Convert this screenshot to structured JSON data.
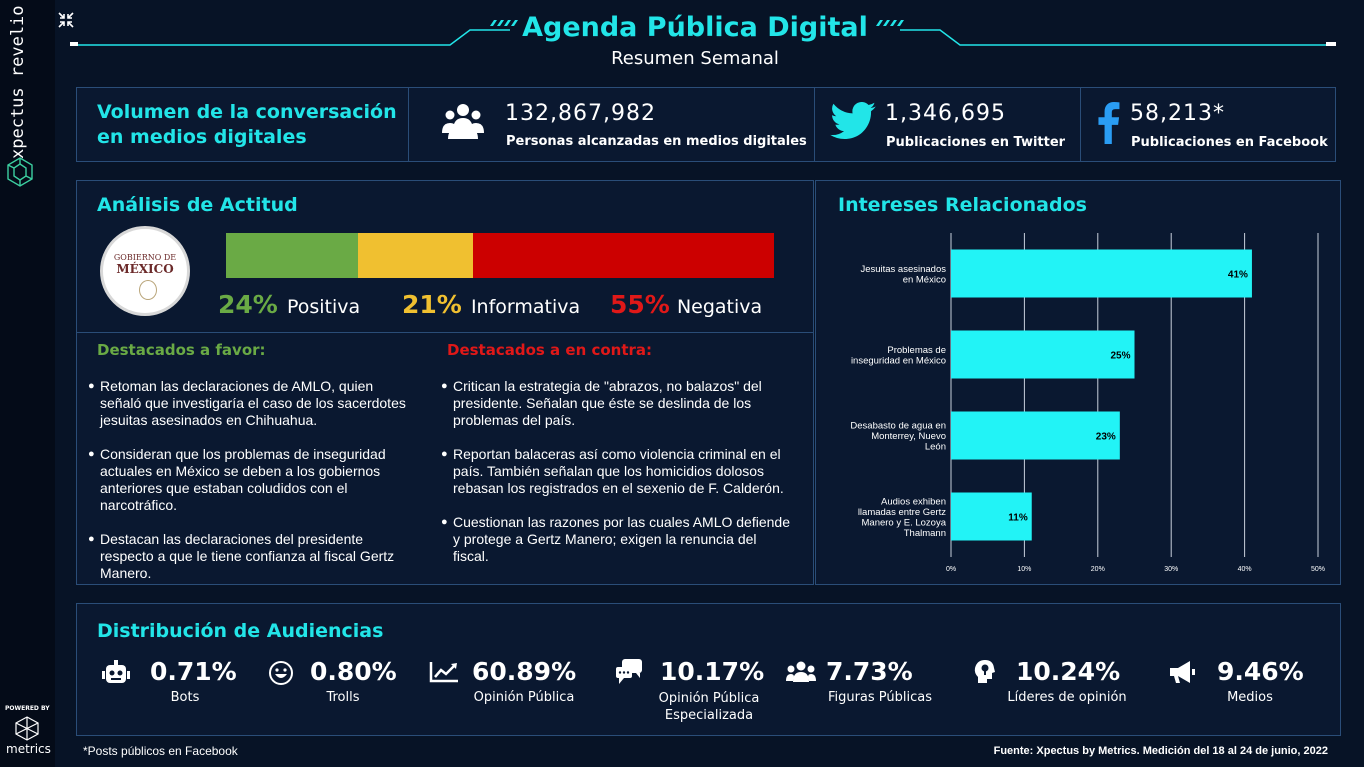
{
  "sidebar": {
    "brand": "xpectus revelio",
    "powered_by": "POWERED BY",
    "powered_name": "metrics"
  },
  "header": {
    "title": "Agenda Pública Digital",
    "subtitle": "Resumen Semanal"
  },
  "volume": {
    "title_line1": "Volumen de la conversación",
    "title_line2": "en medios digitales",
    "stats": [
      {
        "icon": "people-icon",
        "value": "132,867,982",
        "label": "Personas alcanzadas en medios digitales"
      },
      {
        "icon": "twitter-icon",
        "value": "1,346,695",
        "label": "Publicaciones en Twitter"
      },
      {
        "icon": "facebook-icon",
        "value": "58,213*",
        "label": "Publicaciones en Facebook"
      }
    ]
  },
  "attitude": {
    "title": "Análisis de Actitud",
    "logo_line1": "GOBIERNO DE",
    "logo_line2": "MÉXICO",
    "segments": [
      {
        "pct": "24%",
        "label": "Positiva",
        "value": 24,
        "color": "#6aaa45"
      },
      {
        "pct": "21%",
        "label": "Informativa",
        "value": 21,
        "color": "#f0c030"
      },
      {
        "pct": "55%",
        "label": "Negativa",
        "value": 55,
        "color": "#cc0000"
      }
    ],
    "favor_title": "Destacados a favor:",
    "contra_title": "Destacados a en contra:",
    "favor": [
      "Retoman las declaraciones de AMLO, quien señaló que investigaría el caso de los sacerdotes jesuitas asesinados en Chihuahua.",
      "Consideran que los problemas de inseguridad actuales en México se deben a los gobiernos anteriores que estaban coludidos con el narcotráfico.",
      "Destacan las declaraciones del presidente respecto a que le tiene confianza al fiscal Gertz Manero."
    ],
    "contra": [
      "Critican la estrategia de \"abrazos, no balazos\" del presidente. Señalan que éste se deslinda de los problemas del país.",
      "Reportan balaceras así como violencia criminal en el país. También señalan que los homicidios dolosos rebasan los registrados en el sexenio de F. Calderón.",
      "Cuestionan las razones por las cuales AMLO defiende y protege a Gertz Manero; exigen la renuncia del fiscal."
    ]
  },
  "chart_data": {
    "type": "bar",
    "orientation": "horizontal",
    "title": "Intereses Relacionados",
    "categories": [
      [
        "Jesuitas asesinados",
        "en México"
      ],
      [
        "Problemas de",
        "inseguridad en México"
      ],
      [
        "Desabasto de agua en",
        "Monterrey, Nuevo",
        "León"
      ],
      [
        "Audios exhiben",
        "llamadas entre Gertz",
        "Manero y E. Lozoya",
        "Thalmann"
      ]
    ],
    "values": [
      41,
      25,
      23,
      11
    ],
    "value_labels": [
      "41%",
      "25%",
      "23%",
      "11%"
    ],
    "xlim": [
      0,
      50
    ],
    "xticks": [
      "0%",
      "10%",
      "20%",
      "30%",
      "40%",
      "50%"
    ],
    "grid": true,
    "bar_color": "#22f3f6"
  },
  "audiences": {
    "title": "Distribución de Audiencias",
    "items": [
      {
        "icon": "robot-icon",
        "value": "0.71%",
        "label": "Bots"
      },
      {
        "icon": "troll-face-icon",
        "value": "0.80%",
        "label": "Trolls"
      },
      {
        "icon": "trend-chart-icon",
        "value": "60.89%",
        "label": "Opinión Pública"
      },
      {
        "icon": "chat-bubbles-icon",
        "value": "10.17%",
        "label": "Opinión Pública Especializada"
      },
      {
        "icon": "users-group-icon",
        "value": "7.73%",
        "label": "Figuras Públicas"
      },
      {
        "icon": "lightbulb-head-icon",
        "value": "10.24%",
        "label": "Líderes de opinión"
      },
      {
        "icon": "megaphone-icon",
        "value": "9.46%",
        "label": "Medios"
      }
    ]
  },
  "footer": {
    "note": "*Posts públicos en Facebook",
    "source": "Fuente: Xpectus by Metrics. Medición del 18 al 24 de junio, 2022"
  }
}
